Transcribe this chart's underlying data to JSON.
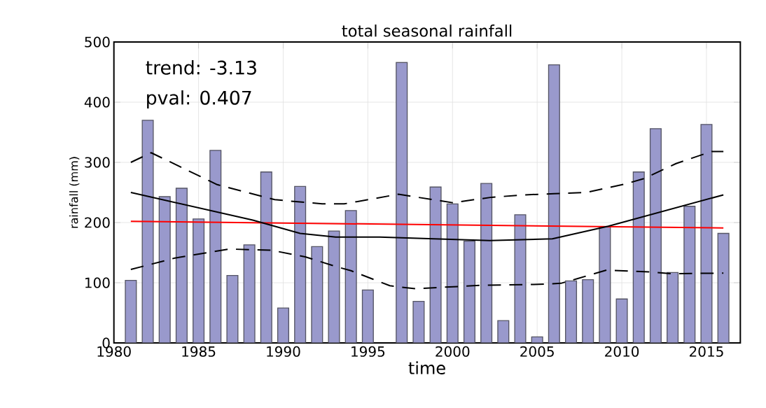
{
  "chart_data": {
    "type": "bar",
    "title": "total seasonal rainfall",
    "xlabel": "time",
    "ylabel": "rainfall (mm)",
    "x": [
      1981,
      1982,
      1983,
      1984,
      1985,
      1986,
      1987,
      1988,
      1989,
      1990,
      1991,
      1992,
      1993,
      1994,
      1995,
      1996,
      1997,
      1998,
      1999,
      2000,
      2001,
      2002,
      2003,
      2004,
      2005,
      2006,
      2007,
      2008,
      2009,
      2010,
      2011,
      2012,
      2013,
      2014,
      2015,
      2016
    ],
    "series": [
      {
        "color": "#9999cc",
        "values": [
          104,
          370,
          243,
          257,
          206,
          320,
          112,
          163,
          284,
          58,
          260,
          160,
          186,
          220,
          88,
          null,
          466,
          69,
          259,
          231,
          169,
          265,
          37,
          213,
          10,
          462,
          103,
          105,
          193,
          73,
          284,
          356,
          117,
          227,
          363,
          182
        ]
      },
      {
        "type": "line",
        "color": "#ff0000",
        "line_style": "solid",
        "x": [
          1981,
          2016
        ],
        "values": [
          202,
          191
        ]
      },
      {
        "type": "line",
        "color": "#000000",
        "line_style": "solid",
        "x": [
          1981,
          1988.2,
          1991,
          1993.1,
          1995.7,
          1998.9,
          2002.2,
          2005.9,
          2009.2,
          2016
        ],
        "values": [
          250,
          204,
          182,
          176,
          176,
          173,
          170,
          173,
          194,
          246
        ]
      },
      {
        "type": "line",
        "color": "#000000",
        "line_style": "dashed",
        "x": [
          1981,
          1982.2,
          1986.1,
          1989.5,
          1992.3,
          1993.6,
          1996.8,
          2000,
          2002.3,
          2004.3,
          2006,
          2007.9,
          2010.2,
          2011.3,
          2013.2,
          2015.3,
          2016
        ],
        "values": [
          300,
          316,
          263,
          238,
          231,
          231,
          247,
          233,
          242,
          246,
          248,
          250,
          264,
          273,
          298,
          318,
          318
        ]
      },
      {
        "type": "line",
        "color": "#000000",
        "line_style": "dashed",
        "x": [
          1981,
          1983.6,
          1986.8,
          1989.3,
          1991.3,
          1993.1,
          1994,
          1996.3,
          1997.8,
          2000.5,
          2001.9,
          2004.7,
          2006.4,
          2007.4,
          2009.1,
          2011.6,
          2012.9,
          2016
        ],
        "values": [
          122,
          141,
          156,
          154,
          143,
          127,
          120,
          95,
          90,
          94,
          96,
          97,
          99,
          107,
          121,
          118,
          115,
          116
        ]
      }
    ],
    "xlim": [
      1980,
      2017
    ],
    "xticks": [
      1980,
      1985,
      1990,
      1995,
      2000,
      2005,
      2010,
      2015
    ],
    "ylim": [
      0,
      500
    ],
    "yticks": [
      0,
      100,
      200,
      300,
      400,
      500
    ],
    "grid": true,
    "annotations": [
      "trend: -3.13",
      "pval: 0.407"
    ]
  }
}
